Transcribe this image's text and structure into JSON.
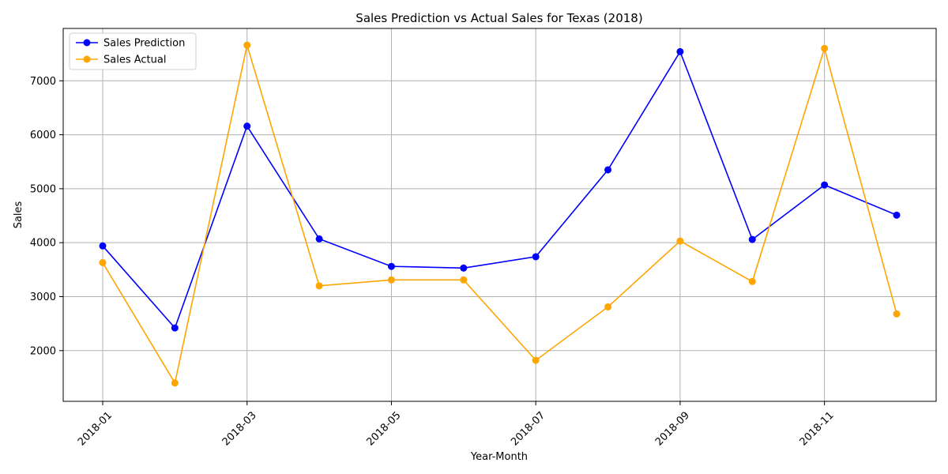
{
  "chart_data": {
    "type": "line",
    "title": "Sales Prediction vs Actual Sales for Texas (2018)",
    "xlabel": "Year-Month",
    "ylabel": "Sales",
    "x": [
      "2018-01",
      "2018-02",
      "2018-03",
      "2018-04",
      "2018-05",
      "2018-06",
      "2018-07",
      "2018-08",
      "2018-09",
      "2018-10",
      "2018-11",
      "2018-12"
    ],
    "x_tick_labels": [
      "2018-01",
      "2018-03",
      "2018-05",
      "2018-07",
      "2018-09",
      "2018-11"
    ],
    "y_ticks": [
      2000,
      3000,
      4000,
      5000,
      6000,
      7000
    ],
    "ylim": [
      1060,
      7970
    ],
    "grid": true,
    "legend_position": "top-left",
    "series": [
      {
        "name": "Sales Prediction",
        "color": "#0000ff",
        "values": [
          3940,
          2420,
          6160,
          4070,
          3560,
          3530,
          3740,
          5350,
          7540,
          4060,
          5070,
          4510
        ]
      },
      {
        "name": "Sales Actual",
        "color": "#ffa500",
        "values": [
          3630,
          1400,
          7660,
          3200,
          3310,
          3310,
          1820,
          2810,
          4030,
          3280,
          7600,
          2680
        ]
      }
    ]
  }
}
